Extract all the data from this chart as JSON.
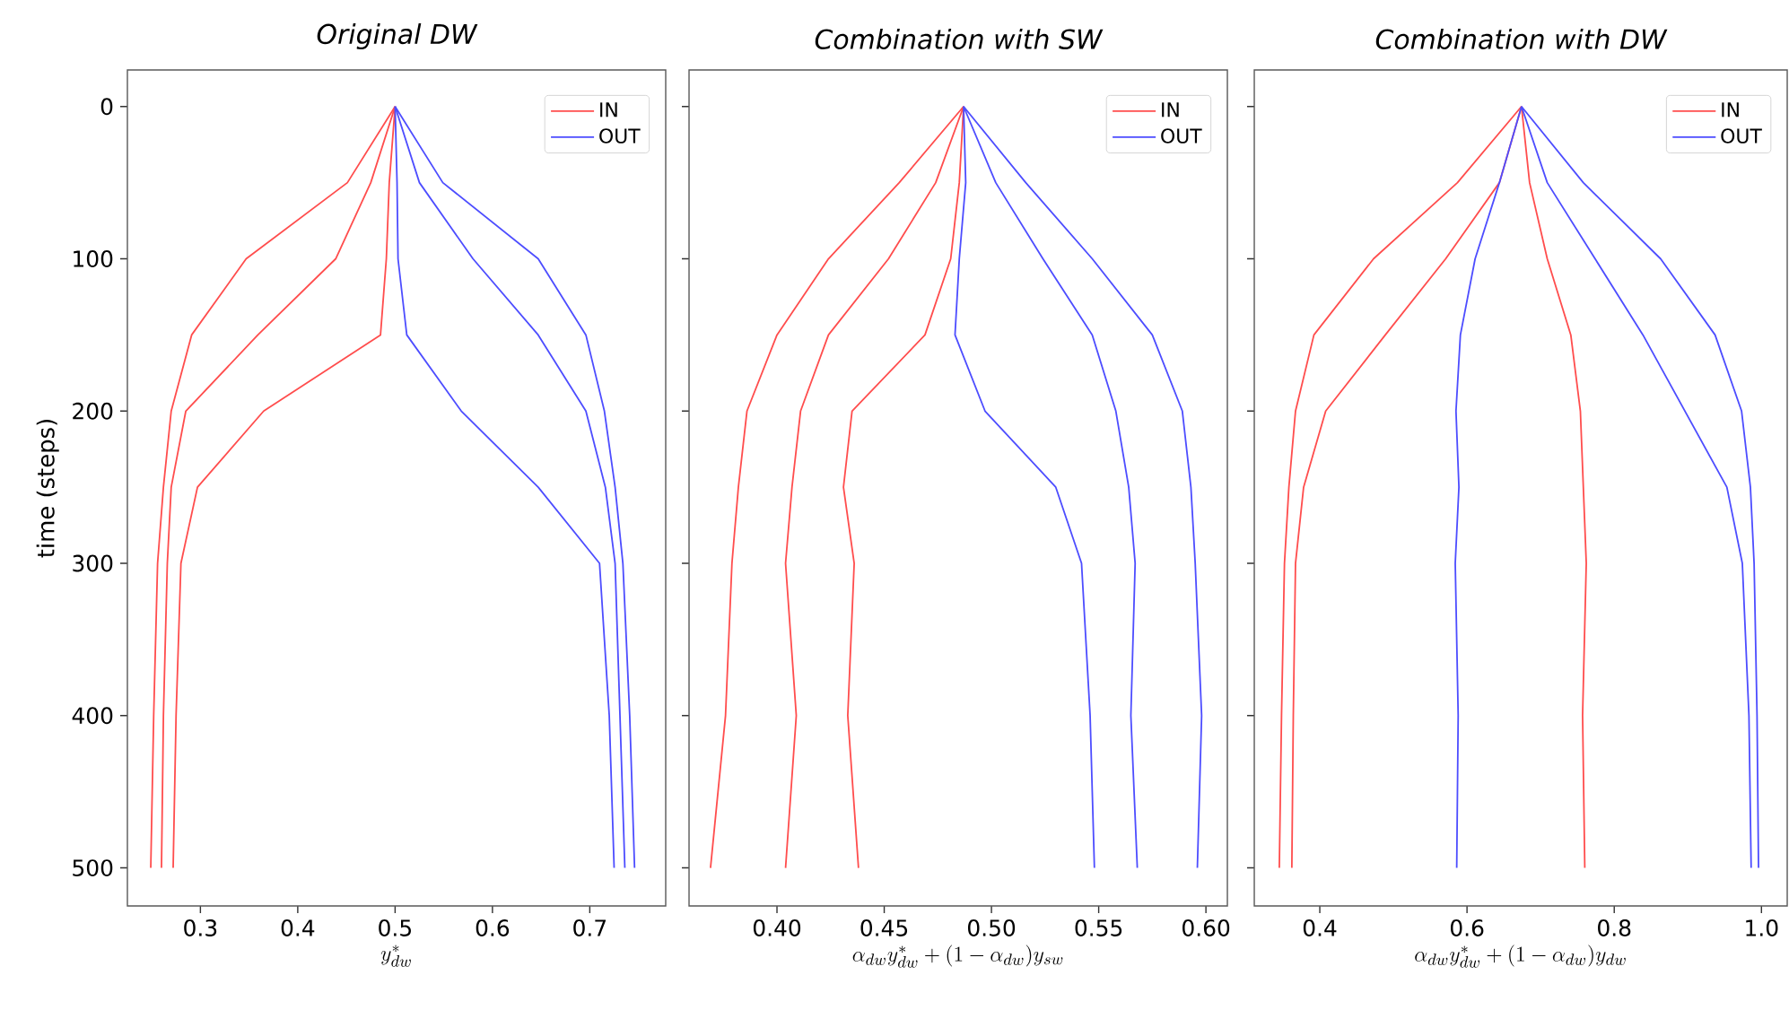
{
  "chart_data": [
    {
      "type": "line",
      "title": "Original DW",
      "xlabel": "y^*_{dw}",
      "ylabel": "time (steps)",
      "xlim": [
        0.225,
        0.778
      ],
      "xticks": [
        0.3,
        0.4,
        0.5,
        0.6,
        0.7
      ],
      "ylim": [
        525,
        -24
      ],
      "yticks": [
        0,
        100,
        200,
        300,
        400,
        500
      ],
      "legend": "top right",
      "series": [
        {
          "name": "IN",
          "color": "#ff4d4d",
          "x": [
            0.5,
            0.451,
            0.347,
            0.291,
            0.27,
            0.262,
            0.256,
            0.252,
            0.249
          ],
          "values": [
            0,
            50,
            100,
            150,
            200,
            250,
            300,
            400,
            500
          ]
        },
        {
          "color": "#ff4d4d",
          "x": [
            0.5,
            0.475,
            0.439,
            0.359,
            0.285,
            0.27,
            0.266,
            0.262,
            0.26
          ],
          "values": [
            0,
            50,
            100,
            150,
            200,
            250,
            300,
            400,
            500
          ]
        },
        {
          "color": "#ff4d4d",
          "x": [
            0.5,
            0.494,
            0.491,
            0.485,
            0.365,
            0.297,
            0.28,
            0.275,
            0.272
          ],
          "values": [
            0,
            50,
            100,
            150,
            200,
            250,
            300,
            400,
            500
          ]
        },
        {
          "name": "OUT",
          "color": "#4d4dff",
          "x": [
            0.5,
            0.549,
            0.647,
            0.696,
            0.715,
            0.726,
            0.734,
            0.741,
            0.746
          ],
          "values": [
            0,
            50,
            100,
            150,
            200,
            250,
            300,
            400,
            500
          ]
        },
        {
          "color": "#4d4dff",
          "x": [
            0.5,
            0.525,
            0.58,
            0.647,
            0.696,
            0.716,
            0.726,
            0.731,
            0.736
          ],
          "values": [
            0,
            50,
            100,
            150,
            200,
            250,
            300,
            400,
            500
          ]
        },
        {
          "color": "#4d4dff",
          "x": [
            0.5,
            0.502,
            0.503,
            0.512,
            0.568,
            0.647,
            0.71,
            0.72,
            0.725
          ],
          "values": [
            0,
            50,
            100,
            150,
            200,
            250,
            300,
            400,
            500
          ]
        }
      ]
    },
    {
      "type": "line",
      "title": "Combination with SW",
      "xlabel": "\\alpha_{dw}y^*_{dw}+(1-\\alpha_{dw})y_{sw}",
      "xlim": [
        0.359,
        0.61
      ],
      "xticks": [
        {
          "value": 0.4,
          "label": "0.40"
        },
        0.45,
        {
          "value": 0.5,
          "label": "0.50"
        },
        0.55,
        {
          "value": 0.6,
          "label": "0.60"
        }
      ],
      "ylim": [
        525,
        -24
      ],
      "yticks": [
        0,
        100,
        200,
        300,
        400,
        500
      ],
      "tick_labels": "x",
      "legend": "top right",
      "series": [
        {
          "name": "IN",
          "color": "#ff4d4d",
          "x": [
            0.487,
            0.457,
            0.424,
            0.4,
            0.386,
            0.382,
            0.379,
            0.376,
            0.369
          ],
          "values": [
            0,
            50,
            100,
            150,
            200,
            250,
            300,
            400,
            500
          ]
        },
        {
          "color": "#ff4d4d",
          "x": [
            0.487,
            0.474,
            0.452,
            0.424,
            0.411,
            0.407,
            0.404,
            0.409,
            0.404
          ],
          "values": [
            0,
            50,
            100,
            150,
            200,
            250,
            300,
            400,
            500
          ]
        },
        {
          "color": "#ff4d4d",
          "x": [
            0.487,
            0.485,
            0.481,
            0.469,
            0.435,
            0.431,
            0.436,
            0.433,
            0.438
          ],
          "values": [
            0,
            50,
            100,
            150,
            200,
            250,
            300,
            400,
            500
          ]
        },
        {
          "name": "OUT",
          "color": "#4d4dff",
          "x": [
            0.487,
            0.516,
            0.547,
            0.575,
            0.589,
            0.593,
            0.595,
            0.598,
            0.596
          ],
          "values": [
            0,
            50,
            100,
            150,
            200,
            250,
            300,
            400,
            500
          ]
        },
        {
          "color": "#4d4dff",
          "x": [
            0.487,
            0.502,
            0.524,
            0.547,
            0.558,
            0.564,
            0.567,
            0.565,
            0.568
          ],
          "values": [
            0,
            50,
            100,
            150,
            200,
            250,
            300,
            400,
            500
          ]
        },
        {
          "color": "#4d4dff",
          "x": [
            0.487,
            0.488,
            0.485,
            0.483,
            0.497,
            0.53,
            0.542,
            0.546,
            0.548
          ],
          "values": [
            0,
            50,
            100,
            150,
            200,
            250,
            300,
            400,
            500
          ]
        }
      ]
    },
    {
      "type": "line",
      "title": "Combination with DW",
      "xlabel": "\\alpha_{dw}y^*_{dw}+(1-\\alpha_{dw})y_{dw}",
      "xlim": [
        0.311,
        1.035
      ],
      "xticks": [
        0.4,
        0.6,
        0.8,
        {
          "value": 1.0,
          "label": "1.0"
        }
      ],
      "ylim": [
        525,
        -24
      ],
      "yticks": [
        0,
        100,
        200,
        300,
        400,
        500
      ],
      "tick_labels": "x",
      "legend": "top right",
      "series": [
        {
          "name": "IN",
          "color": "#ff4d4d",
          "x": [
            0.674,
            0.587,
            0.473,
            0.392,
            0.367,
            0.358,
            0.352,
            0.348,
            0.345
          ],
          "values": [
            0,
            50,
            100,
            150,
            200,
            250,
            300,
            400,
            500
          ]
        },
        {
          "color": "#ff4d4d",
          "x": [
            0.674,
            0.644,
            0.571,
            0.489,
            0.408,
            0.378,
            0.367,
            0.364,
            0.362
          ],
          "values": [
            0,
            50,
            100,
            150,
            200,
            250,
            300,
            400,
            500
          ]
        },
        {
          "color": "#ff4d4d",
          "x": [
            0.674,
            0.685,
            0.709,
            0.741,
            0.754,
            0.758,
            0.762,
            0.757,
            0.76
          ],
          "values": [
            0,
            50,
            100,
            150,
            200,
            250,
            300,
            400,
            500
          ]
        },
        {
          "name": "OUT",
          "color": "#4d4dff",
          "x": [
            0.674,
            0.758,
            0.863,
            0.937,
            0.973,
            0.985,
            0.99,
            0.994,
            0.996
          ],
          "values": [
            0,
            50,
            100,
            150,
            200,
            250,
            300,
            400,
            500
          ]
        },
        {
          "color": "#4d4dff",
          "x": [
            0.674,
            0.709,
            0.774,
            0.839,
            0.896,
            0.953,
            0.974,
            0.983,
            0.986
          ],
          "values": [
            0,
            50,
            100,
            150,
            200,
            250,
            300,
            400,
            500
          ]
        },
        {
          "color": "#4d4dff",
          "x": [
            0.674,
            0.644,
            0.611,
            0.591,
            0.585,
            0.589,
            0.584,
            0.588,
            0.586
          ],
          "values": [
            0,
            50,
            100,
            150,
            200,
            250,
            300,
            400,
            500
          ]
        }
      ]
    }
  ]
}
